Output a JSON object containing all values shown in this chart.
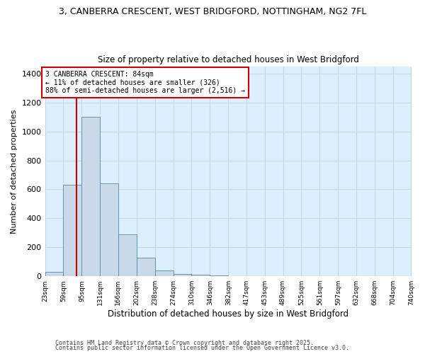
{
  "title_line1": "3, CANBERRA CRESCENT, WEST BRIDGFORD, NOTTINGHAM, NG2 7FL",
  "title_line2": "Size of property relative to detached houses in West Bridgford",
  "xlabel": "Distribution of detached houses by size in West Bridgford",
  "ylabel": "Number of detached properties",
  "bin_edges": [
    23,
    59,
    95,
    131,
    166,
    202,
    238,
    274,
    310,
    346,
    382,
    417,
    453,
    489,
    525,
    561,
    597,
    632,
    668,
    704,
    740
  ],
  "bar_heights": [
    30,
    630,
    1100,
    640,
    290,
    130,
    40,
    15,
    10,
    5,
    0,
    0,
    0,
    0,
    0,
    0,
    0,
    0,
    0,
    0
  ],
  "bar_facecolor": "#c9d9ea",
  "bar_edgecolor": "#5588aa",
  "grid_color": "#c5d8e8",
  "background_color": "#ddeeff",
  "vline_x": 84,
  "vline_color": "#cc0000",
  "annotation_title": "3 CANBERRA CRESCENT: 84sqm",
  "annotation_line2": "← 11% of detached houses are smaller (326)",
  "annotation_line3": "88% of semi-detached houses are larger (2,516) →",
  "annotation_box_color": "#cc0000",
  "ylim": [
    0,
    1450
  ],
  "yticks": [
    0,
    200,
    400,
    600,
    800,
    1000,
    1200,
    1400
  ],
  "footnote_line1": "Contains HM Land Registry data © Crown copyright and database right 2025.",
  "footnote_line2": "Contains public sector information licensed under the Open Government Licence v3.0.",
  "fig_facecolor": "#ffffff"
}
